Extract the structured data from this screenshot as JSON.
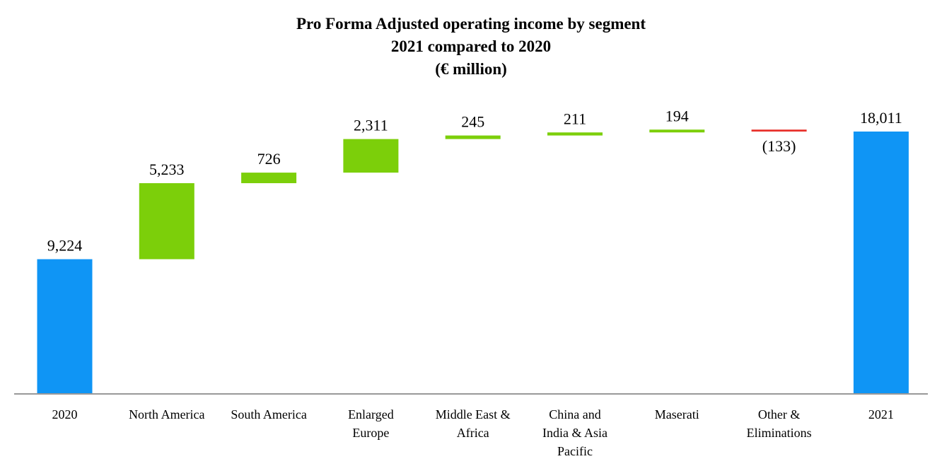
{
  "chart_data": {
    "type": "waterfall",
    "title": [
      "Pro Forma Adjusted operating income by segment",
      "2021 compared to 2020",
      "(€ million)"
    ],
    "categories": [
      [
        "2020"
      ],
      [
        "North America"
      ],
      [
        "South America"
      ],
      [
        "Enlarged",
        "Europe"
      ],
      [
        "Middle East &",
        "Africa"
      ],
      [
        "China and",
        "India & Asia",
        "Pacific"
      ],
      [
        "Maserati"
      ],
      [
        "Other &",
        "Eliminations"
      ],
      [
        "2021"
      ]
    ],
    "values": [
      9224,
      5233,
      726,
      2311,
      245,
      211,
      194,
      -133,
      18011
    ],
    "labels": [
      "9,224",
      "5,233",
      "726",
      "2,311",
      "245",
      "211",
      "194",
      "(133)",
      "18,011"
    ],
    "kinds": [
      "total",
      "delta",
      "delta",
      "delta",
      "delta",
      "delta",
      "delta",
      "delta",
      "total"
    ],
    "ylim": [
      0,
      18011
    ],
    "colors": {
      "total": "#0f95f5",
      "increase": "#7ccf0a",
      "decrease": "#e8302a",
      "axis": "#999999"
    }
  }
}
